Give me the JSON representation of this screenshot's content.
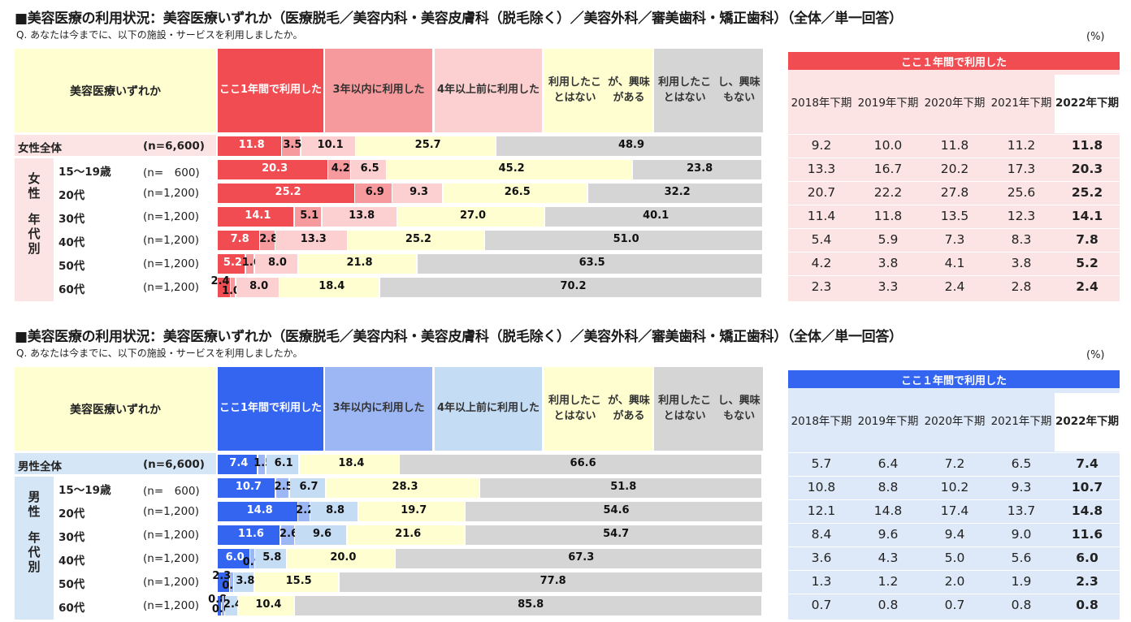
{
  "colors": {
    "female": {
      "seg": [
        "#f04c52",
        "#f79a9d",
        "#fcd0d0",
        "#fefed0",
        "#d5d5d5"
      ],
      "hdr": [
        "#f04c52",
        "#f79a9d",
        "#fcd0d0",
        "#fefed0",
        "#d5d5d5"
      ],
      "hdr_text": [
        "#ffffff",
        "#333333",
        "#333333",
        "#333333",
        "#333333"
      ],
      "left_head": "#fefed0",
      "band": "#fce4e4",
      "trend_top": "#f04c52",
      "trend_body": "#fce4e4"
    },
    "male": {
      "seg": [
        "#3365f1",
        "#9cb7f3",
        "#c5dcf5",
        "#fefed0",
        "#d5d5d5"
      ],
      "hdr": [
        "#3365f1",
        "#9cb7f3",
        "#c5dcf5",
        "#fefed0",
        "#d5d5d5"
      ],
      "hdr_text": [
        "#ffffff",
        "#333333",
        "#333333",
        "#333333",
        "#333333"
      ],
      "left_head": "#fefed0",
      "band": "#d5e6f7",
      "trend_top": "#3365f1",
      "trend_body": "#dde9f8"
    }
  },
  "sections": [
    {
      "id": "female",
      "title": "■美容医療の利用状況：美容医療いずれか（医療脱毛／美容内科・美容皮膚科（脱毛除く）／美容外科／審美歯科・矯正歯科）（全体／単一回答）",
      "question": "Q. あなたは今までに、以下の施設・サービスを利用しましたか。",
      "unit": "(%)",
      "left_header": "美容医療いずれか",
      "col_headers": [
        "ここ1年間で\n利用した",
        "3年以内に\n利用した",
        "4年以上前に\n利用した",
        "利用したことはない\nが、興味がある",
        "利用したことはない\nし、興味もない"
      ],
      "group_label": [
        "女",
        "性",
        "",
        "年",
        "代",
        "別"
      ],
      "trend_title": "ここ１年間で利用した",
      "trend_years": [
        "2018年\n下期",
        "2019年\n下期",
        "2020年\n下期",
        "2021年\n下期",
        "2022年\n下期"
      ]
    },
    {
      "id": "male",
      "title": "■美容医療の利用状況：美容医療いずれか（医療脱毛／美容内科・美容皮膚科（脱毛除く）／美容外科／審美歯科・矯正歯科）（全体／単一回答）",
      "question": "Q. あなたは今までに、以下の施設・サービスを利用しましたか。",
      "unit": "(%)",
      "left_header": "美容医療いずれか",
      "col_headers": [
        "ここ1年間で\n利用した",
        "3年以内に\n利用した",
        "4年以上前に\n利用した",
        "利用したことはない\nが、興味がある",
        "利用したことはない\nし、興味もない"
      ],
      "group_label": [
        "男",
        "性",
        "",
        "年",
        "代",
        "別"
      ],
      "trend_title": "ここ１年間で利用した",
      "trend_years": [
        "2018年\n下期",
        "2019年\n下期",
        "2020年\n下期",
        "2021年\n下期",
        "2022年\n下期"
      ]
    }
  ],
  "chart_data": [
    {
      "type": "bar",
      "stacked": true,
      "orientation": "horizontal",
      "categories": [
        "女性全体",
        "15〜19歳",
        "20代",
        "30代",
        "40代",
        "50代",
        "60代"
      ],
      "n_labels": [
        "(n=6,600)",
        "(n=　600)",
        "(n=1,200)",
        "(n=1,200)",
        "(n=1,200)",
        "(n=1,200)",
        "(n=1,200)"
      ],
      "series": [
        {
          "name": "ここ1年間で利用した",
          "values": [
            11.8,
            20.3,
            25.2,
            14.1,
            7.8,
            5.2,
            2.4
          ]
        },
        {
          "name": "3年以内に利用した",
          "values": [
            3.5,
            4.2,
            6.9,
            5.1,
            2.8,
            1.6,
            1.0
          ]
        },
        {
          "name": "4年以上前に利用した",
          "values": [
            10.1,
            6.5,
            9.3,
            13.8,
            13.3,
            8.0,
            8.0
          ]
        },
        {
          "name": "利用したことはないが、興味がある",
          "values": [
            25.7,
            45.2,
            26.5,
            27.0,
            25.2,
            21.8,
            18.4
          ]
        },
        {
          "name": "利用したことはないし、興味もない",
          "values": [
            48.9,
            23.8,
            32.2,
            40.1,
            51.0,
            63.5,
            70.2
          ]
        }
      ],
      "trend_table": {
        "title": "ここ１年間で利用した",
        "columns": [
          "2018年下期",
          "2019年下期",
          "2020年下期",
          "2021年下期",
          "2022年下期"
        ],
        "rows": [
          [
            9.2,
            10.0,
            11.8,
            11.2,
            11.8
          ],
          [
            13.3,
            16.7,
            20.2,
            17.3,
            20.3
          ],
          [
            20.7,
            22.2,
            27.8,
            25.6,
            25.2
          ],
          [
            11.4,
            11.8,
            13.5,
            12.3,
            14.1
          ],
          [
            5.4,
            5.9,
            7.3,
            8.3,
            7.8
          ],
          [
            4.2,
            3.8,
            4.1,
            3.8,
            5.2
          ],
          [
            2.3,
            3.3,
            2.4,
            2.8,
            2.4
          ]
        ]
      }
    },
    {
      "type": "bar",
      "stacked": true,
      "orientation": "horizontal",
      "categories": [
        "男性全体",
        "15〜19歳",
        "20代",
        "30代",
        "40代",
        "50代",
        "60代"
      ],
      "n_labels": [
        "(n=6,600)",
        "(n=　600)",
        "(n=1,200)",
        "(n=1,200)",
        "(n=1,200)",
        "(n=1,200)",
        "(n=1,200)"
      ],
      "series": [
        {
          "name": "ここ1年間で利用した",
          "values": [
            7.4,
            10.7,
            14.8,
            11.6,
            6.0,
            2.3,
            0.8
          ]
        },
        {
          "name": "3年以内に利用した",
          "values": [
            1.5,
            2.5,
            2.2,
            2.6,
            0.9,
            0.7,
            0.6
          ]
        },
        {
          "name": "4年以上前に利用した",
          "values": [
            6.1,
            6.7,
            8.8,
            9.6,
            5.8,
            3.8,
            2.4
          ]
        },
        {
          "name": "利用したことはないが、興味がある",
          "values": [
            18.4,
            28.3,
            19.7,
            21.6,
            20.0,
            15.5,
            10.4
          ]
        },
        {
          "name": "利用したことはないし、興味もない",
          "values": [
            66.6,
            51.8,
            54.6,
            54.7,
            67.3,
            77.8,
            85.8
          ]
        }
      ],
      "trend_table": {
        "title": "ここ１年間で利用した",
        "columns": [
          "2018年下期",
          "2019年下期",
          "2020年下期",
          "2021年下期",
          "2022年下期"
        ],
        "rows": [
          [
            5.7,
            6.4,
            7.2,
            6.5,
            7.4
          ],
          [
            10.8,
            8.8,
            10.2,
            9.3,
            10.7
          ],
          [
            12.1,
            14.8,
            17.4,
            13.7,
            14.8
          ],
          [
            8.4,
            9.6,
            9.4,
            9.0,
            11.6
          ],
          [
            3.6,
            4.3,
            5.0,
            5.6,
            6.0
          ],
          [
            1.3,
            1.2,
            2.0,
            1.9,
            2.3
          ],
          [
            0.7,
            0.8,
            0.7,
            0.8,
            0.8
          ]
        ]
      }
    }
  ]
}
